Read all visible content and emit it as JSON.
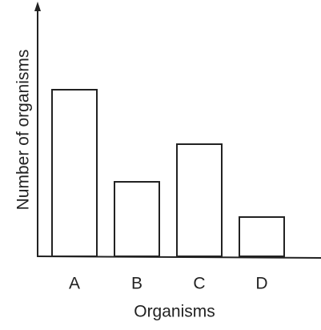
{
  "chart_data": {
    "type": "bar",
    "x_label": "Organisms",
    "y_label": "Number of organisms",
    "categories": [
      "A",
      "B",
      "C",
      "D"
    ],
    "values": [
      208,
      93,
      140,
      49
    ],
    "color": "#ffffff",
    "ylim": [
      0,
      310
    ]
  }
}
